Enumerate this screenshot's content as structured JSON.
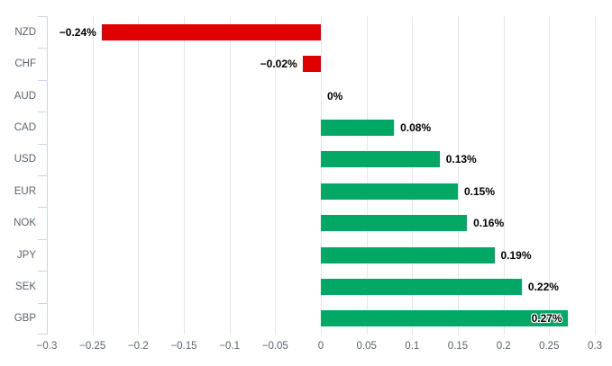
{
  "chart_data": {
    "type": "bar",
    "orientation": "horizontal",
    "categories": [
      "NZD",
      "CHF",
      "AUD",
      "CAD",
      "USD",
      "EUR",
      "NOK",
      "JPY",
      "SEK",
      "GBP"
    ],
    "values": [
      -0.24,
      -0.02,
      0,
      0.08,
      0.13,
      0.15,
      0.16,
      0.19,
      0.22,
      0.27
    ],
    "value_labels": [
      "−0.24%",
      "−0.02%",
      "0%",
      "0.08%",
      "0.13%",
      "0.15%",
      "0.16%",
      "0.19%",
      "0.22%",
      "0.27%"
    ],
    "label_placement": [
      "outside",
      "outside",
      "outside",
      "outside",
      "outside",
      "outside",
      "outside",
      "outside",
      "outside",
      "inside"
    ],
    "xlim": [
      -0.3,
      0.3
    ],
    "x_tick_values": [
      -0.3,
      -0.25,
      -0.2,
      -0.15,
      -0.1,
      -0.05,
      0,
      0.05,
      0.1,
      0.15,
      0.2,
      0.25,
      0.3
    ],
    "x_tick_labels": [
      "−0.3",
      "−0.25",
      "−0.2",
      "−0.15",
      "−0.1",
      "−0.05",
      "0",
      "0.05",
      "0.1",
      "0.15",
      "0.2",
      "0.25",
      "0.3"
    ],
    "grid": true,
    "legend": "none",
    "colors": {
      "positive": "#00a866",
      "negative": "#e00000",
      "gridline": "#e6e6e6",
      "axis": "#ccd6eb",
      "axis_text": "#5a6470",
      "value_text": "#000000",
      "background": "#ffffff"
    }
  }
}
